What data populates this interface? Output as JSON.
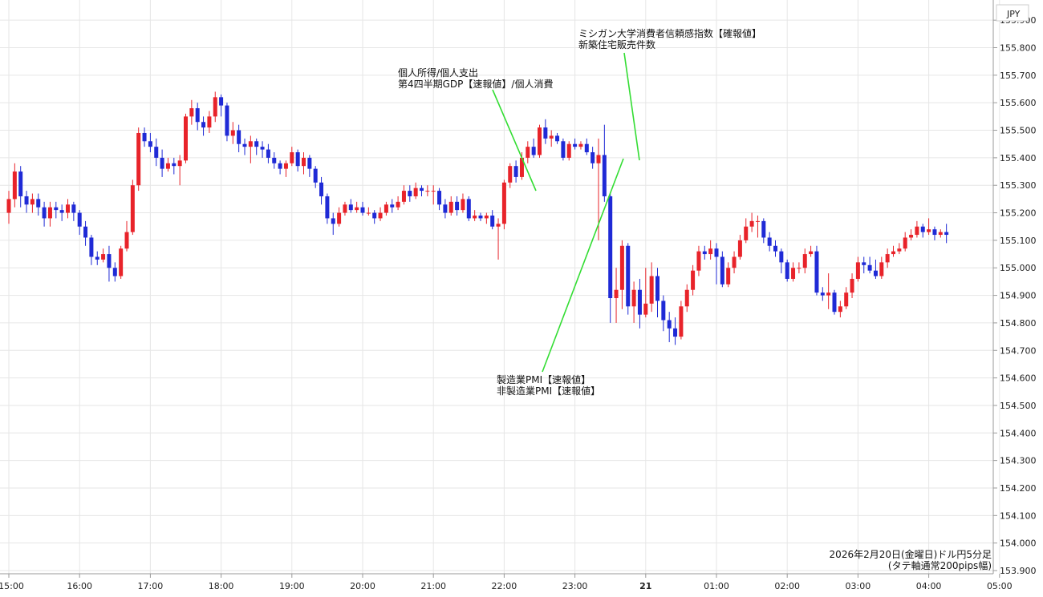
{
  "chart_data": {
    "type": "candlestick",
    "currency_label": "JPY",
    "interval_minutes": 5,
    "ylim": [
      153.9,
      155.95
    ],
    "yticks": [
      "153.900",
      "154.000",
      "154.100",
      "154.200",
      "154.300",
      "154.400",
      "154.500",
      "154.600",
      "154.700",
      "154.800",
      "154.900",
      "155.000",
      "155.100",
      "155.200",
      "155.300",
      "155.400",
      "155.500",
      "155.600",
      "155.700",
      "155.800",
      "155.900"
    ],
    "xticks": [
      {
        "label": "15:00",
        "slot": 0
      },
      {
        "label": "16:00",
        "slot": 12
      },
      {
        "label": "17:00",
        "slot": 24
      },
      {
        "label": "18:00",
        "slot": 36
      },
      {
        "label": "19:00",
        "slot": 48
      },
      {
        "label": "20:00",
        "slot": 60
      },
      {
        "label": "21:00",
        "slot": 72
      },
      {
        "label": "22:00",
        "slot": 84
      },
      {
        "label": "23:00",
        "slot": 96
      },
      {
        "label": "21",
        "slot": 108
      },
      {
        "label": "01:00",
        "slot": 120
      },
      {
        "label": "02:00",
        "slot": 132
      },
      {
        "label": "03:00",
        "slot": 144
      },
      {
        "label": "04:00",
        "slot": 156
      },
      {
        "label": "05:00",
        "slot": 168
      }
    ],
    "candles": [
      [
        155.2,
        155.25,
        155.28,
        155.16
      ],
      [
        155.25,
        155.35,
        155.38,
        155.22
      ],
      [
        155.35,
        155.26,
        155.37,
        155.22
      ],
      [
        155.26,
        155.23,
        155.28,
        155.2
      ],
      [
        155.23,
        155.25,
        155.27,
        155.2
      ],
      [
        155.25,
        155.22,
        155.27,
        155.19
      ],
      [
        155.22,
        155.18,
        155.24,
        155.15
      ],
      [
        155.18,
        155.22,
        155.24,
        155.15
      ],
      [
        155.22,
        155.21,
        155.24,
        155.18
      ],
      [
        155.21,
        155.2,
        155.23,
        155.17
      ],
      [
        155.2,
        155.23,
        155.25,
        155.18
      ],
      [
        155.23,
        155.2,
        155.24,
        155.17
      ],
      [
        155.2,
        155.15,
        155.21,
        155.12
      ],
      [
        155.15,
        155.11,
        155.17,
        155.08
      ],
      [
        155.11,
        155.04,
        155.12,
        155.01
      ],
      [
        155.04,
        155.03,
        155.06,
        155.01
      ],
      [
        155.03,
        155.05,
        155.07,
        155.02
      ],
      [
        155.05,
        155.0,
        155.08,
        154.95
      ],
      [
        155.0,
        154.97,
        155.02,
        154.95
      ],
      [
        154.97,
        155.07,
        155.08,
        154.96
      ],
      [
        155.07,
        155.13,
        155.17,
        155.06
      ],
      [
        155.13,
        155.3,
        155.32,
        155.12
      ],
      [
        155.3,
        155.49,
        155.51,
        155.28
      ],
      [
        155.49,
        155.46,
        155.51,
        155.44
      ],
      [
        155.46,
        155.44,
        155.49,
        155.42
      ],
      [
        155.44,
        155.4,
        155.47,
        155.37
      ],
      [
        155.4,
        155.36,
        155.43,
        155.33
      ],
      [
        155.36,
        155.38,
        155.4,
        155.35
      ],
      [
        155.38,
        155.37,
        155.4,
        155.34
      ],
      [
        155.37,
        155.39,
        155.41,
        155.3
      ],
      [
        155.39,
        155.55,
        155.56,
        155.38
      ],
      [
        155.55,
        155.58,
        155.61,
        155.52
      ],
      [
        155.58,
        155.53,
        155.6,
        155.5
      ],
      [
        155.53,
        155.51,
        155.55,
        155.48
      ],
      [
        155.51,
        155.55,
        155.57,
        155.49
      ],
      [
        155.55,
        155.62,
        155.64,
        155.53
      ],
      [
        155.62,
        155.59,
        155.63,
        155.55
      ],
      [
        155.59,
        155.48,
        155.6,
        155.46
      ],
      [
        155.48,
        155.5,
        155.53,
        155.45
      ],
      [
        155.5,
        155.45,
        155.52,
        155.42
      ],
      [
        155.45,
        155.44,
        155.47,
        155.41
      ],
      [
        155.44,
        155.46,
        155.48,
        155.38
      ],
      [
        155.46,
        155.44,
        155.47,
        155.41
      ],
      [
        155.44,
        155.43,
        155.46,
        155.4
      ],
      [
        155.43,
        155.4,
        155.45,
        155.38
      ],
      [
        155.4,
        155.38,
        155.42,
        155.36
      ],
      [
        155.38,
        155.36,
        155.39,
        155.34
      ],
      [
        155.36,
        155.38,
        155.39,
        155.33
      ],
      [
        155.38,
        155.42,
        155.44,
        155.37
      ],
      [
        155.42,
        155.37,
        155.43,
        155.35
      ],
      [
        155.37,
        155.4,
        155.42,
        155.34
      ],
      [
        155.4,
        155.36,
        155.41,
        155.33
      ],
      [
        155.36,
        155.31,
        155.37,
        155.29
      ],
      [
        155.31,
        155.26,
        155.33,
        155.23
      ],
      [
        155.26,
        155.18,
        155.27,
        155.16
      ],
      [
        155.18,
        155.16,
        155.2,
        155.12
      ],
      [
        155.16,
        155.2,
        155.22,
        155.15
      ],
      [
        155.2,
        155.23,
        155.24,
        155.19
      ],
      [
        155.23,
        155.21,
        155.25,
        155.2
      ],
      [
        155.21,
        155.22,
        155.24,
        155.2
      ],
      [
        155.22,
        155.2,
        155.24,
        155.19
      ],
      [
        155.2,
        155.2,
        155.22,
        155.19
      ],
      [
        155.2,
        155.18,
        155.21,
        155.16
      ],
      [
        155.18,
        155.2,
        155.22,
        155.17
      ],
      [
        155.2,
        155.23,
        155.24,
        155.19
      ],
      [
        155.23,
        155.22,
        155.25,
        155.2
      ],
      [
        155.22,
        155.24,
        155.26,
        155.21
      ],
      [
        155.24,
        155.28,
        155.3,
        155.23
      ],
      [
        155.28,
        155.26,
        155.3,
        155.24
      ],
      [
        155.26,
        155.29,
        155.31,
        155.25
      ],
      [
        155.29,
        155.28,
        155.3,
        155.26
      ],
      [
        155.28,
        155.28,
        155.3,
        155.26
      ],
      [
        155.28,
        155.28,
        155.3,
        155.23
      ],
      [
        155.28,
        155.23,
        155.29,
        155.21
      ],
      [
        155.23,
        155.2,
        155.25,
        155.18
      ],
      [
        155.2,
        155.24,
        155.26,
        155.19
      ],
      [
        155.24,
        155.21,
        155.26,
        155.19
      ],
      [
        155.21,
        155.25,
        155.27,
        155.2
      ],
      [
        155.25,
        155.18,
        155.26,
        155.17
      ],
      [
        155.18,
        155.19,
        155.21,
        155.17
      ],
      [
        155.19,
        155.18,
        155.2,
        155.17
      ],
      [
        155.18,
        155.19,
        155.2,
        155.16
      ],
      [
        155.19,
        155.15,
        155.21,
        155.14
      ],
      [
        155.15,
        155.16,
        155.18,
        155.03
      ],
      [
        155.16,
        155.31,
        155.32,
        155.14
      ],
      [
        155.31,
        155.37,
        155.38,
        155.29
      ],
      [
        155.37,
        155.33,
        155.39,
        155.31
      ],
      [
        155.33,
        155.4,
        155.42,
        155.32
      ],
      [
        155.4,
        155.44,
        155.46,
        155.38
      ],
      [
        155.44,
        155.41,
        155.47,
        155.4
      ],
      [
        155.41,
        155.51,
        155.52,
        155.4
      ],
      [
        155.51,
        155.47,
        155.54,
        155.45
      ],
      [
        155.47,
        155.48,
        155.5,
        155.44
      ],
      [
        155.48,
        155.46,
        155.49,
        155.45
      ],
      [
        155.46,
        155.4,
        155.47,
        155.39
      ],
      [
        155.4,
        155.45,
        155.46,
        155.39
      ],
      [
        155.45,
        155.44,
        155.47,
        155.43
      ],
      [
        155.44,
        155.45,
        155.46,
        155.43
      ],
      [
        155.45,
        155.42,
        155.47,
        155.41
      ],
      [
        155.42,
        155.38,
        155.44,
        155.36
      ],
      [
        155.38,
        155.41,
        155.47,
        155.1
      ],
      [
        155.41,
        155.26,
        155.52,
        155.24
      ],
      [
        155.26,
        154.89,
        155.27,
        154.8
      ],
      [
        154.89,
        154.92,
        155.0,
        154.8
      ],
      [
        154.92,
        155.08,
        155.1,
        154.85
      ],
      [
        155.08,
        154.86,
        155.09,
        154.83
      ],
      [
        154.86,
        154.92,
        154.95,
        154.8
      ],
      [
        154.92,
        154.83,
        154.96,
        154.78
      ],
      [
        154.83,
        154.87,
        155.0,
        154.82
      ],
      [
        154.87,
        154.97,
        155.02,
        154.84
      ],
      [
        154.97,
        154.88,
        155.0,
        154.82
      ],
      [
        154.88,
        154.81,
        154.9,
        154.77
      ],
      [
        154.81,
        154.78,
        154.84,
        154.73
      ],
      [
        154.78,
        154.75,
        154.82,
        154.72
      ],
      [
        154.75,
        154.86,
        154.88,
        154.74
      ],
      [
        154.86,
        154.92,
        154.94,
        154.84
      ],
      [
        154.92,
        154.99,
        155.01,
        154.9
      ],
      [
        154.99,
        155.06,
        155.08,
        154.97
      ],
      [
        155.06,
        155.05,
        155.08,
        155.03
      ],
      [
        155.05,
        155.07,
        155.1,
        155.03
      ],
      [
        155.07,
        155.04,
        155.09,
        154.94
      ],
      [
        155.04,
        154.94,
        155.06,
        154.93
      ],
      [
        154.94,
        155.0,
        155.02,
        154.93
      ],
      [
        155.0,
        155.04,
        155.06,
        154.98
      ],
      [
        155.04,
        155.1,
        155.12,
        155.03
      ],
      [
        155.1,
        155.15,
        155.18,
        155.09
      ],
      [
        155.15,
        155.17,
        155.2,
        155.13
      ],
      [
        155.17,
        155.17,
        155.19,
        155.11
      ],
      [
        155.17,
        155.11,
        155.18,
        155.09
      ],
      [
        155.11,
        155.08,
        155.13,
        155.06
      ],
      [
        155.08,
        155.06,
        155.1,
        155.04
      ],
      [
        155.06,
        155.02,
        155.07,
        154.98
      ],
      [
        155.02,
        154.96,
        155.03,
        154.95
      ],
      [
        154.96,
        155.0,
        155.02,
        154.95
      ],
      [
        155.0,
        155.0,
        155.02,
        154.98
      ],
      [
        155.0,
        155.05,
        155.07,
        154.98
      ],
      [
        155.05,
        155.06,
        155.08,
        155.04
      ],
      [
        155.06,
        154.91,
        155.08,
        154.9
      ],
      [
        154.91,
        154.9,
        154.93,
        154.88
      ],
      [
        154.9,
        154.91,
        154.98,
        154.85
      ],
      [
        154.91,
        154.84,
        154.92,
        154.83
      ],
      [
        154.84,
        154.86,
        154.88,
        154.82
      ],
      [
        154.86,
        154.91,
        154.93,
        154.85
      ],
      [
        154.91,
        154.96,
        154.98,
        154.89
      ],
      [
        154.96,
        155.02,
        155.04,
        154.95
      ],
      [
        155.02,
        155.01,
        155.04,
        154.98
      ],
      [
        155.01,
        154.99,
        155.04,
        154.98
      ],
      [
        154.99,
        154.97,
        155.03,
        154.96
      ],
      [
        154.97,
        155.02,
        155.04,
        154.96
      ],
      [
        155.02,
        155.05,
        155.07,
        155.0
      ],
      [
        155.05,
        155.06,
        155.08,
        155.04
      ],
      [
        155.06,
        155.07,
        155.09,
        155.05
      ],
      [
        155.07,
        155.11,
        155.13,
        155.06
      ],
      [
        155.11,
        155.12,
        155.14,
        155.1
      ],
      [
        155.12,
        155.15,
        155.17,
        155.11
      ],
      [
        155.15,
        155.13,
        155.16,
        155.11
      ],
      [
        155.13,
        155.14,
        155.18,
        155.12
      ],
      [
        155.14,
        155.12,
        155.15,
        155.1
      ],
      [
        155.12,
        155.13,
        155.14,
        155.11
      ],
      [
        155.13,
        155.12,
        155.16,
        155.09
      ]
    ],
    "annotations": [
      {
        "lines": [
          "個人所得/個人支出",
          "第4四半期GDP【速報値】/個人消費"
        ],
        "slot": 84
      },
      {
        "lines": [
          "ミシガン大学消費者信頼感指数【確報値】",
          "新築住宅販売件数"
        ],
        "slot": 108
      },
      {
        "lines": [
          "製造業PMI【速報値】",
          "非製造業PMI【速報値】"
        ],
        "slot": 105
      }
    ],
    "caption": [
      "2026年2月20日(金曜日)ドル円5分足",
      "(タテ軸通常200pips幅)"
    ],
    "colors": {
      "up": "#e8232a",
      "down": "#1f2ad6",
      "annotation_line": "#33dd33",
      "grid": "#e6e6e6"
    }
  }
}
